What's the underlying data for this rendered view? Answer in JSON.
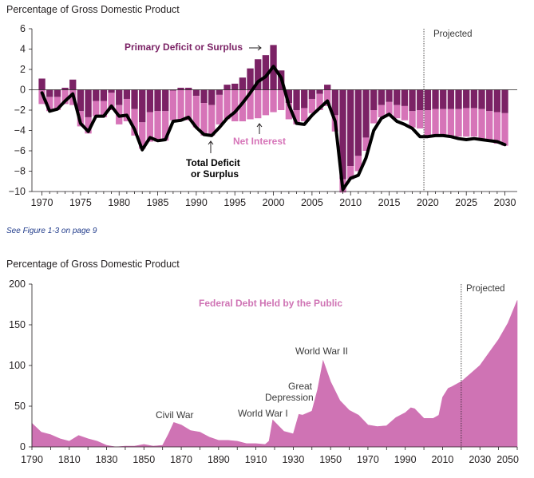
{
  "note": "See Figure 1-3 on page 9",
  "colors": {
    "primary": "#7b2265",
    "net_interest": "#d674b8",
    "total": "#000000",
    "debt": "#cf73b4"
  },
  "chart_data": [
    {
      "type": "bar",
      "ylabel": "Percentage of Gross Domestic Product",
      "ylim": [
        -10,
        6
      ],
      "yticks": [
        "6",
        "4",
        "2",
        "0",
        "−2",
        "−4",
        "−6",
        "−8",
        "−10"
      ],
      "xticks": [
        "1970",
        "1975",
        "1980",
        "1985",
        "1990",
        "1995",
        "2000",
        "2005",
        "2010",
        "2015",
        "2020",
        "2025",
        "2030"
      ],
      "x": [
        1970,
        1971,
        1972,
        1973,
        1974,
        1975,
        1976,
        1977,
        1978,
        1979,
        1980,
        1981,
        1982,
        1983,
        1984,
        1985,
        1986,
        1987,
        1988,
        1989,
        1990,
        1991,
        1992,
        1993,
        1994,
        1995,
        1996,
        1997,
        1998,
        1999,
        2000,
        2001,
        2002,
        2003,
        2004,
        2005,
        2006,
        2007,
        2008,
        2009,
        2010,
        2011,
        2012,
        2013,
        2014,
        2015,
        2016,
        2017,
        2018,
        2019,
        2020,
        2021,
        2022,
        2023,
        2024,
        2025,
        2026,
        2027,
        2028,
        2029,
        2030
      ],
      "series": [
        {
          "name": "Primary Deficit or Surplus",
          "values": [
            1.1,
            -0.7,
            -0.7,
            0.2,
            1.0,
            -2.1,
            -2.7,
            -1.1,
            -1.1,
            -0.3,
            -1.5,
            -0.9,
            -1.9,
            -3.2,
            -2.2,
            -2.1,
            -2.1,
            -0.1,
            0.2,
            0.2,
            -0.6,
            -1.3,
            -1.5,
            -0.5,
            0.5,
            0.6,
            1.2,
            2.1,
            3.0,
            3.4,
            4.4,
            1.9,
            -1.3,
            -2.0,
            -1.8,
            -0.9,
            -0.4,
            0.5,
            -2.5,
            -8.8,
            -7.5,
            -6.5,
            -4.7,
            -2.0,
            -1.5,
            -1.2,
            -1.5,
            -1.6,
            -2.1,
            -2.0,
            -2.0,
            -1.9,
            -1.9,
            -1.9,
            -1.9,
            -1.8,
            -1.8,
            -1.9,
            -2.1,
            -2.2,
            -2.3
          ]
        },
        {
          "name": "Net Interest",
          "values": [
            -1.4,
            -1.4,
            -1.3,
            -1.4,
            -1.5,
            -1.5,
            -1.6,
            -1.5,
            -1.6,
            -1.7,
            -1.9,
            -2.2,
            -2.6,
            -2.6,
            -2.9,
            -3.0,
            -2.9,
            -2.9,
            -2.9,
            -3.0,
            -3.1,
            -3.2,
            -3.0,
            -2.9,
            -2.9,
            -3.1,
            -3.1,
            -2.9,
            -2.8,
            -2.5,
            -2.2,
            -2.0,
            -1.6,
            -1.4,
            -1.3,
            -1.4,
            -1.6,
            -1.6,
            -1.6,
            -1.3,
            -1.3,
            -1.5,
            -1.3,
            -1.3,
            -1.2,
            -1.3,
            -1.3,
            -1.4,
            -1.6,
            -1.8,
            -2.6,
            -2.6,
            -2.6,
            -2.7,
            -2.7,
            -2.8,
            -2.8,
            -2.9,
            -3.0,
            -3.1,
            -3.2
          ]
        },
        {
          "name": "Total Deficit or Surplus",
          "values": [
            -0.3,
            -2.1,
            -1.9,
            -1.1,
            -0.4,
            -3.3,
            -4.1,
            -2.6,
            -2.6,
            -1.6,
            -2.6,
            -2.5,
            -3.9,
            -5.9,
            -4.7,
            -5.0,
            -4.9,
            -3.1,
            -3.0,
            -2.7,
            -3.7,
            -4.4,
            -4.5,
            -3.7,
            -2.8,
            -2.2,
            -1.3,
            -0.3,
            0.8,
            1.3,
            2.3,
            1.2,
            -1.5,
            -3.3,
            -3.4,
            -2.5,
            -1.8,
            -1.1,
            -3.1,
            -9.8,
            -8.7,
            -8.4,
            -6.7,
            -4.0,
            -2.8,
            -2.4,
            -3.1,
            -3.4,
            -3.8,
            -4.6,
            -4.6,
            -4.5,
            -4.5,
            -4.6,
            -4.8,
            -4.9,
            -4.8,
            -4.9,
            -5.0,
            -5.1,
            -5.4
          ]
        }
      ],
      "projected_from": 2020,
      "labels": {
        "projected": "Projected",
        "primary": "Primary Deficit or Surplus",
        "net_interest": "Net Interest",
        "total_line1": "Total Deficit",
        "total_line2": "or Surplus"
      }
    },
    {
      "type": "area",
      "ylabel": "Percentage of Gross Domestic Product",
      "ylim": [
        0,
        200
      ],
      "yticks": [
        "200",
        "150",
        "100",
        "50",
        "0"
      ],
      "xticks": [
        "1790",
        "1810",
        "1830",
        "1850",
        "1870",
        "1890",
        "1910",
        "1930",
        "1950",
        "1970",
        "1990",
        "2010",
        "2030",
        "2050"
      ],
      "series": [
        {
          "name": "Federal Debt Held by the Public",
          "x": [
            1790,
            1795,
            1800,
            1805,
            1810,
            1815,
            1820,
            1825,
            1830,
            1835,
            1840,
            1845,
            1850,
            1855,
            1860,
            1863,
            1866,
            1870,
            1875,
            1880,
            1885,
            1890,
            1895,
            1900,
            1905,
            1910,
            1915,
            1917,
            1919,
            1922,
            1925,
            1930,
            1933,
            1935,
            1940,
            1943,
            1946,
            1950,
            1955,
            1960,
            1965,
            1970,
            1975,
            1980,
            1985,
            1990,
            1993,
            1995,
            2000,
            2005,
            2008,
            2010,
            2013,
            2015,
            2019,
            2020,
            2025,
            2030,
            2035,
            2040,
            2045,
            2050
          ],
          "y": [
            29,
            18,
            15,
            10,
            7,
            14,
            10,
            7,
            2,
            0,
            1,
            1,
            3,
            1,
            2,
            15,
            30,
            27,
            20,
            18,
            12,
            8,
            8,
            7,
            4,
            4,
            3,
            7,
            33,
            26,
            19,
            16,
            40,
            39,
            44,
            70,
            106,
            80,
            57,
            45,
            39,
            27,
            25,
            26,
            36,
            42,
            48,
            47,
            35,
            35,
            39,
            61,
            72,
            74,
            79,
            80,
            90,
            100,
            116,
            132,
            152,
            180
          ]
        }
      ],
      "projected_from": 2020,
      "labels": {
        "projected": "Projected",
        "debt": "Federal Debt Held by the Public",
        "civil_war": "Civil War",
        "ww1": "World War I",
        "great_depression_1": "Great",
        "great_depression_2": "Depression",
        "ww2": "World War II"
      }
    }
  ]
}
